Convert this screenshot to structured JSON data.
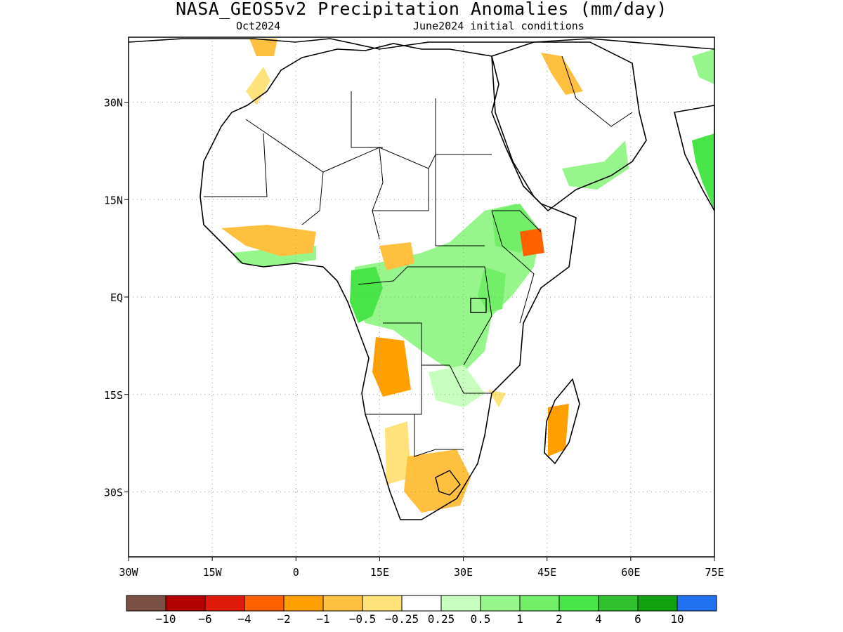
{
  "title": "NASA_GEOS5v2 Precipitation Anomalies (mm/day)",
  "subtitle_left": "Oct2024",
  "subtitle_right": "June2024 initial conditions",
  "axes": {
    "lon_ticks": [
      "30W",
      "15W",
      "0",
      "15E",
      "30E",
      "45E",
      "60E",
      "75E"
    ],
    "lat_ticks": [
      "30N",
      "15N",
      "EQ",
      "15S",
      "30S"
    ],
    "lon_range": [
      -30,
      75
    ],
    "lat_range": [
      -40,
      40
    ],
    "grid": "dotted"
  },
  "colorbar": {
    "colors": [
      "#7a5044",
      "#b30000",
      "#e01a0a",
      "#ff6000",
      "#ffa000",
      "#ffc040",
      "#ffe27a",
      "#ffffff",
      "#c8ffbe",
      "#96f68c",
      "#72ee68",
      "#48e448",
      "#30c030",
      "#10a010",
      "#2070f0"
    ],
    "labels": [
      "−10",
      "−6",
      "−4",
      "−2",
      "−1",
      "−0.5",
      "−0.25",
      "0.25",
      "0.5",
      "1",
      "2",
      "4",
      "6",
      "10"
    ]
  },
  "anomaly_areas": [
    {
      "region": "Morocco coast",
      "lon": -12,
      "lat": 31,
      "level": "-0.5"
    },
    {
      "region": "Iberia",
      "lon": -6,
      "lat": 39,
      "level": "-1"
    },
    {
      "region": "West Africa coast",
      "lon": -4,
      "lat": 10,
      "level": "-1"
    },
    {
      "region": "Central African Republic",
      "lon": 17,
      "lat": 7,
      "level": "-1"
    },
    {
      "region": "Angola",
      "lon": 15,
      "lat": -13,
      "level": "-1"
    },
    {
      "region": "Ethiopia",
      "lon": 41,
      "lat": 9,
      "level": "-2"
    },
    {
      "region": "Madagascar",
      "lon": 46,
      "lat": -20,
      "level": "-1"
    },
    {
      "region": "South Africa",
      "lon": 27,
      "lat": -30,
      "level": "-1"
    },
    {
      "region": "Namibia",
      "lon": 17,
      "lat": -24,
      "level": "-0.5"
    },
    {
      "region": "Congo Basin",
      "lon": 22,
      "lat": 0,
      "level": "1"
    },
    {
      "region": "Gabon",
      "lon": 11,
      "lat": -1,
      "level": "2"
    },
    {
      "region": "East Africa highlands",
      "lon": 36,
      "lat": 3,
      "level": "2"
    },
    {
      "region": "India west coast",
      "lon": 74,
      "lat": 20,
      "level": "2"
    }
  ]
}
